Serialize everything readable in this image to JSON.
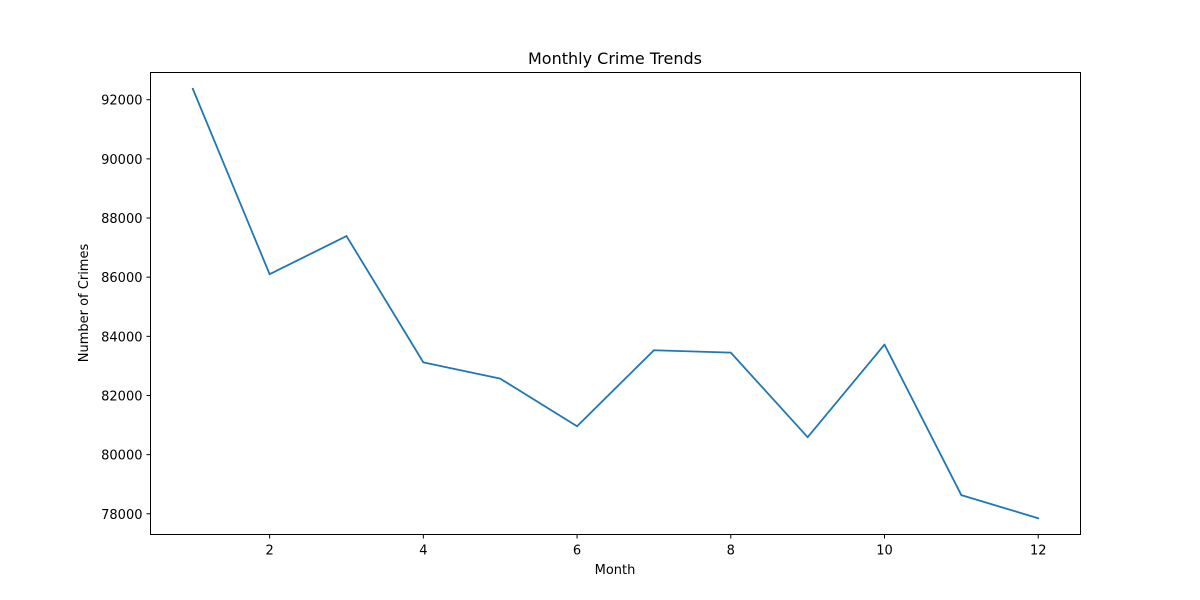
{
  "chart_data": {
    "type": "line",
    "title": "Monthly Crime Trends",
    "xlabel": "Month",
    "ylabel": "Number of Crimes",
    "x": [
      1,
      2,
      3,
      4,
      5,
      6,
      7,
      8,
      9,
      10,
      11,
      12
    ],
    "series": [
      {
        "values": [
          92370,
          86100,
          87390,
          83120,
          82570,
          80960,
          83530,
          83450,
          80590,
          83720,
          78630,
          77850
        ],
        "color": "#1f77b4"
      }
    ],
    "xlim": [
      0.45,
      12.55
    ],
    "ylim": [
      77300,
      92920
    ],
    "xticks": [
      2,
      4,
      6,
      8,
      10,
      12
    ],
    "yticks": [
      78000,
      80000,
      82000,
      84000,
      86000,
      88000,
      90000,
      92000
    ],
    "grid": false,
    "legend": "none"
  }
}
